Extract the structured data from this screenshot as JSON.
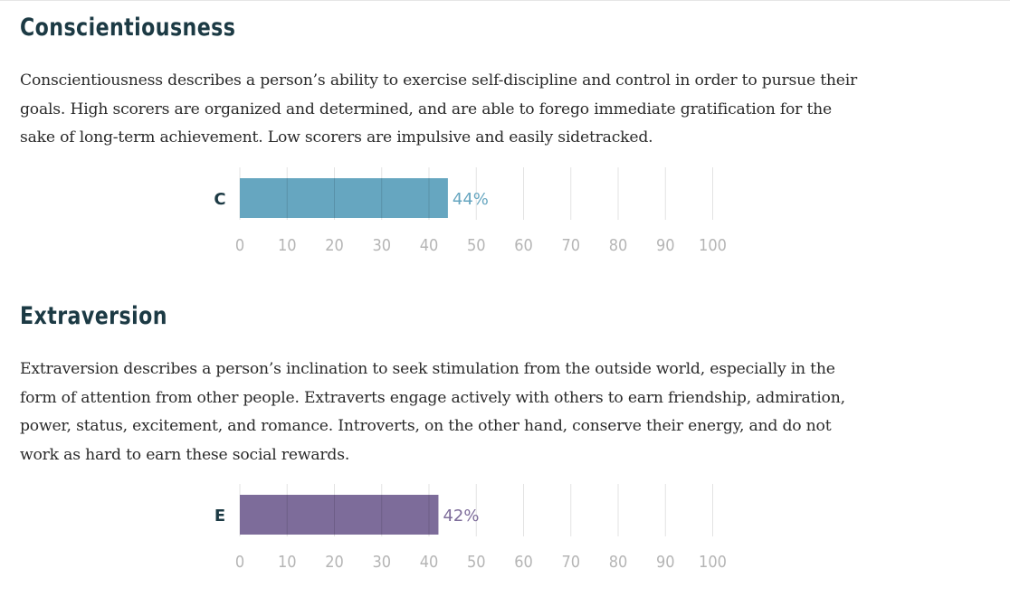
{
  "sections": [
    {
      "title": "Conscientiousness",
      "description": "Conscientiousness describes a person’s ability to exercise self-discipline and control in order to pursue their goals. High scorers are organized and determined, and are able to forego immediate gratification for the sake of long-term achievement. Low scorers are impulsive and easily sidetracked."
    },
    {
      "title": "Extraversion",
      "description": "Extraversion describes a person’s inclination to seek stimulation from the outside world, especially in the form of attention from other people. Extraverts engage actively with others to earn friendship, admiration, power, status, excitement, and romance. Introverts, on the other hand, conserve their energy, and do not work as hard to earn these social rewards."
    }
  ],
  "chart_data": [
    {
      "type": "bar",
      "orientation": "horizontal",
      "categories": [
        "C"
      ],
      "values": [
        44
      ],
      "value_label": "44%",
      "xlim": [
        0,
        100
      ],
      "xticks": [
        0,
        10,
        20,
        30,
        40,
        50,
        60,
        70,
        80,
        90,
        100
      ],
      "grid": true,
      "bar_color": "#66a6c0",
      "label_color": "#66a6c0"
    },
    {
      "type": "bar",
      "orientation": "horizontal",
      "categories": [
        "E"
      ],
      "values": [
        42
      ],
      "value_label": "42%",
      "xlim": [
        0,
        100
      ],
      "xticks": [
        0,
        10,
        20,
        30,
        40,
        50,
        60,
        70,
        80,
        90,
        100
      ],
      "grid": true,
      "bar_color": "#7d6c9a",
      "label_color": "#7d6c9a"
    }
  ]
}
